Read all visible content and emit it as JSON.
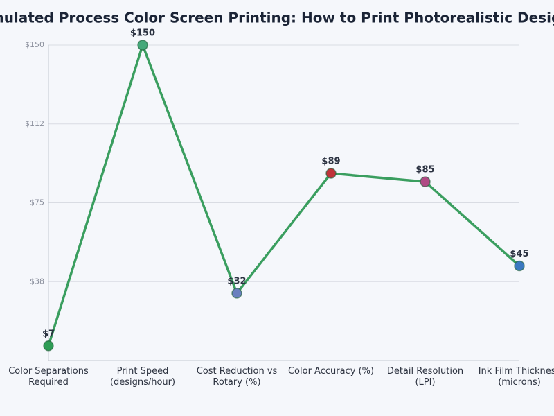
{
  "chart_data": {
    "type": "line",
    "title": "Simulated Process Color Screen Printing: How to Print Photorealistic Designs",
    "categories": [
      [
        "Color Separations",
        "Required"
      ],
      [
        "Print Speed",
        "(designs/hour)"
      ],
      [
        "Cost Reduction vs",
        "Rotary (%)"
      ],
      [
        "Color Accuracy (%)"
      ],
      [
        "Detail Resolution",
        "(LPI)"
      ],
      [
        "Ink Film Thickness",
        "(microns)"
      ]
    ],
    "series": [
      {
        "color": "#3a9e5f",
        "values": [
          7,
          150,
          32,
          89,
          85,
          45
        ],
        "value_labels": [
          "$7",
          "$150",
          "$32",
          "$89",
          "$85",
          "$45"
        ]
      }
    ],
    "marker_colors": [
      "#2e9c55",
      "#45a87a",
      "#6a7fbf",
      "#c0333a",
      "#b04a84",
      "#3b78c0"
    ],
    "ylim": [
      0,
      150
    ],
    "yticks": [
      {
        "value": 37.5,
        "label": "$38"
      },
      {
        "value": 75,
        "label": "$75"
      },
      {
        "value": 112.5,
        "label": "$112"
      },
      {
        "value": 150,
        "label": "$150"
      }
    ],
    "grid": true
  }
}
